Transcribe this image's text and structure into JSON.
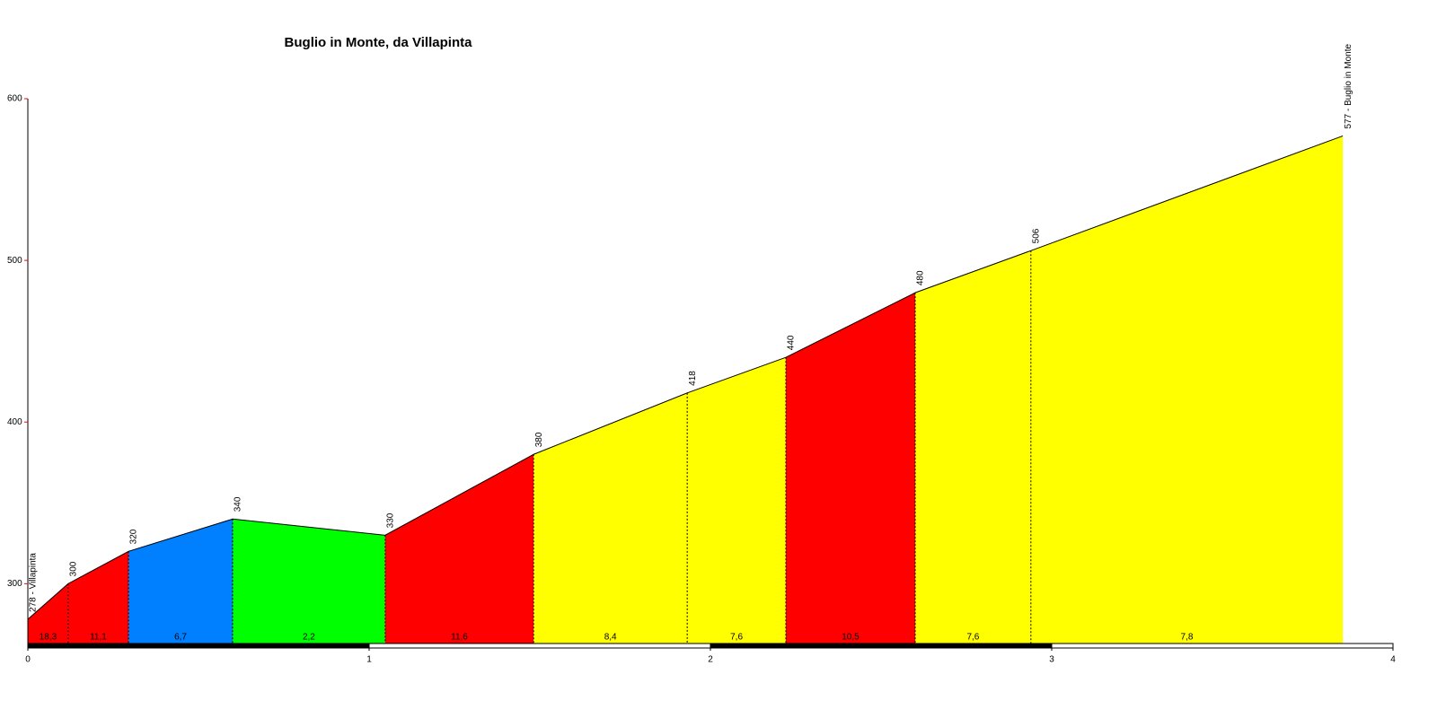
{
  "chart_data": {
    "type": "elevation-profile",
    "title": "Buglio in Monte, da Villapinta",
    "x": [
      0,
      0.118,
      0.295,
      0.6,
      1.047,
      1.482,
      1.932,
      2.221,
      2.6,
      2.939,
      3.853
    ],
    "values": [
      278,
      300,
      320,
      340,
      330,
      380,
      418,
      440,
      480,
      506,
      577
    ],
    "value_labels": [
      "278 - Villapinta",
      "300",
      "320",
      "340",
      "330",
      "380",
      "418",
      "440",
      "480",
      "506",
      "577 - Buglio in Monte"
    ],
    "gradients": [
      18.3,
      11.1,
      6.7,
      2.2,
      11.6,
      8.4,
      7.6,
      10.5,
      7.6,
      7.8
    ],
    "gradient_labels": [
      "18,3",
      "11,1",
      "6,7",
      "2,2",
      "11,6",
      "8,4",
      "7,6",
      "10,5",
      "7,6",
      "7,8"
    ],
    "segment_colors": [
      "#ff0000",
      "#ff0000",
      "#0080ff",
      "#00ff00",
      "#ff0000",
      "#ffff00",
      "#ffff00",
      "#ff0000",
      "#ffff00",
      "#ffff00"
    ],
    "xlim": [
      0,
      4
    ],
    "ylim": [
      263,
      600
    ],
    "xticks": [
      0,
      1,
      2,
      3,
      4
    ],
    "yticks": [
      300,
      400,
      500,
      600
    ]
  }
}
